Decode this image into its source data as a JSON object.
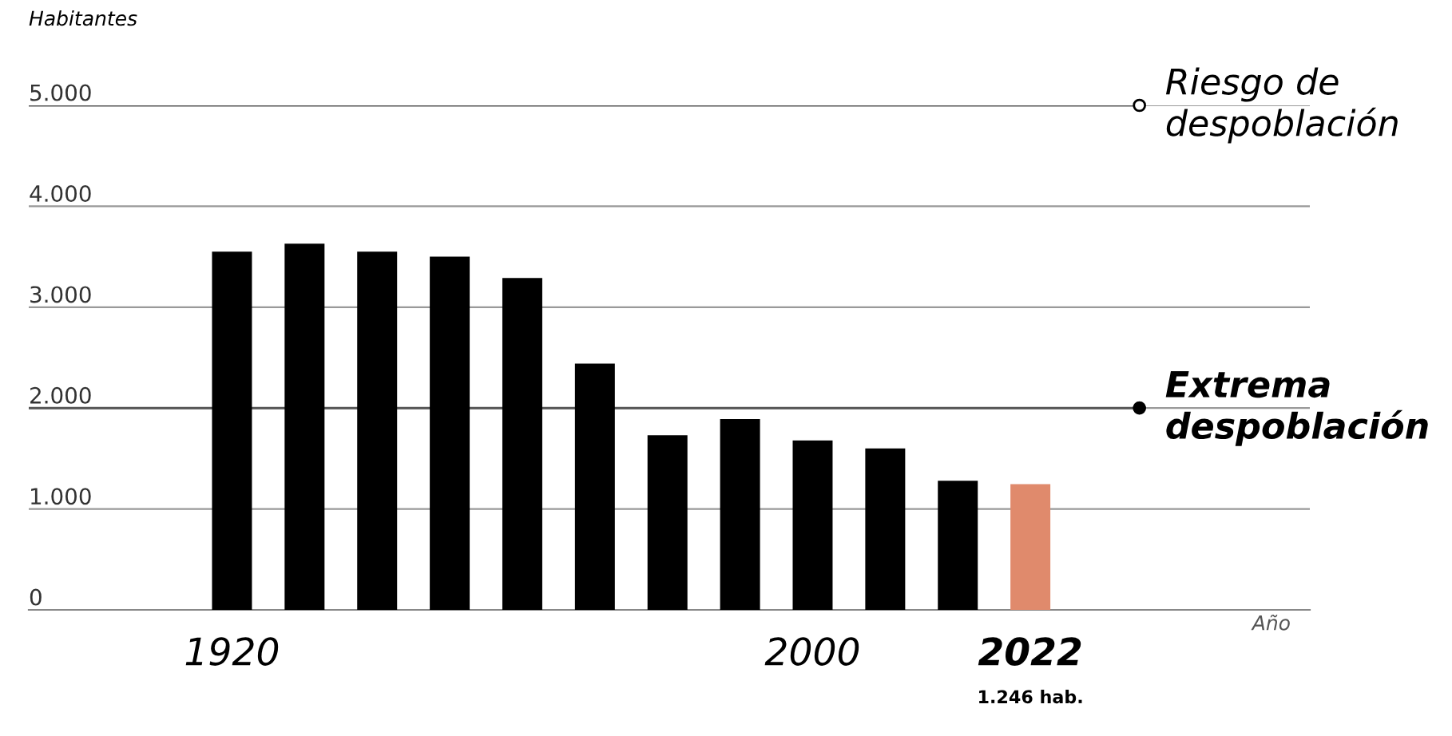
{
  "chart_data": {
    "type": "bar",
    "ylabel": "Habitantes",
    "annotations": [
      "Año",
      "1.246 hab."
    ],
    "categories": [
      "1920",
      null,
      null,
      null,
      null,
      null,
      null,
      null,
      "2000",
      null,
      null,
      "2022"
    ],
    "values": [
      3550,
      3630,
      3550,
      3500,
      3290,
      2440,
      1730,
      1890,
      1680,
      1600,
      1280,
      1246
    ],
    "colors": [
      "#000000",
      "#000000",
      "#000000",
      "#000000",
      "#000000",
      "#000000",
      "#000000",
      "#000000",
      "#000000",
      "#000000",
      "#000000",
      "#e08a6c"
    ],
    "ylim": [
      0,
      5000
    ],
    "yticks": [
      {
        "value": 0,
        "label": "0"
      },
      {
        "value": 1000,
        "label": "1.000"
      },
      {
        "value": 2000,
        "label": "2.000"
      },
      {
        "value": 3000,
        "label": "3.000"
      },
      {
        "value": 4000,
        "label": "4.000"
      },
      {
        "value": 5000,
        "label": "5.000"
      }
    ],
    "grid": "y",
    "ref_lines": [
      {
        "axis": "y",
        "value": 5000,
        "label": "Riesgo de despoblación",
        "color": "#555555"
      },
      {
        "axis": "y",
        "value": 2000,
        "label": "Extrema despoblación",
        "color": "#555555"
      }
    ]
  }
}
